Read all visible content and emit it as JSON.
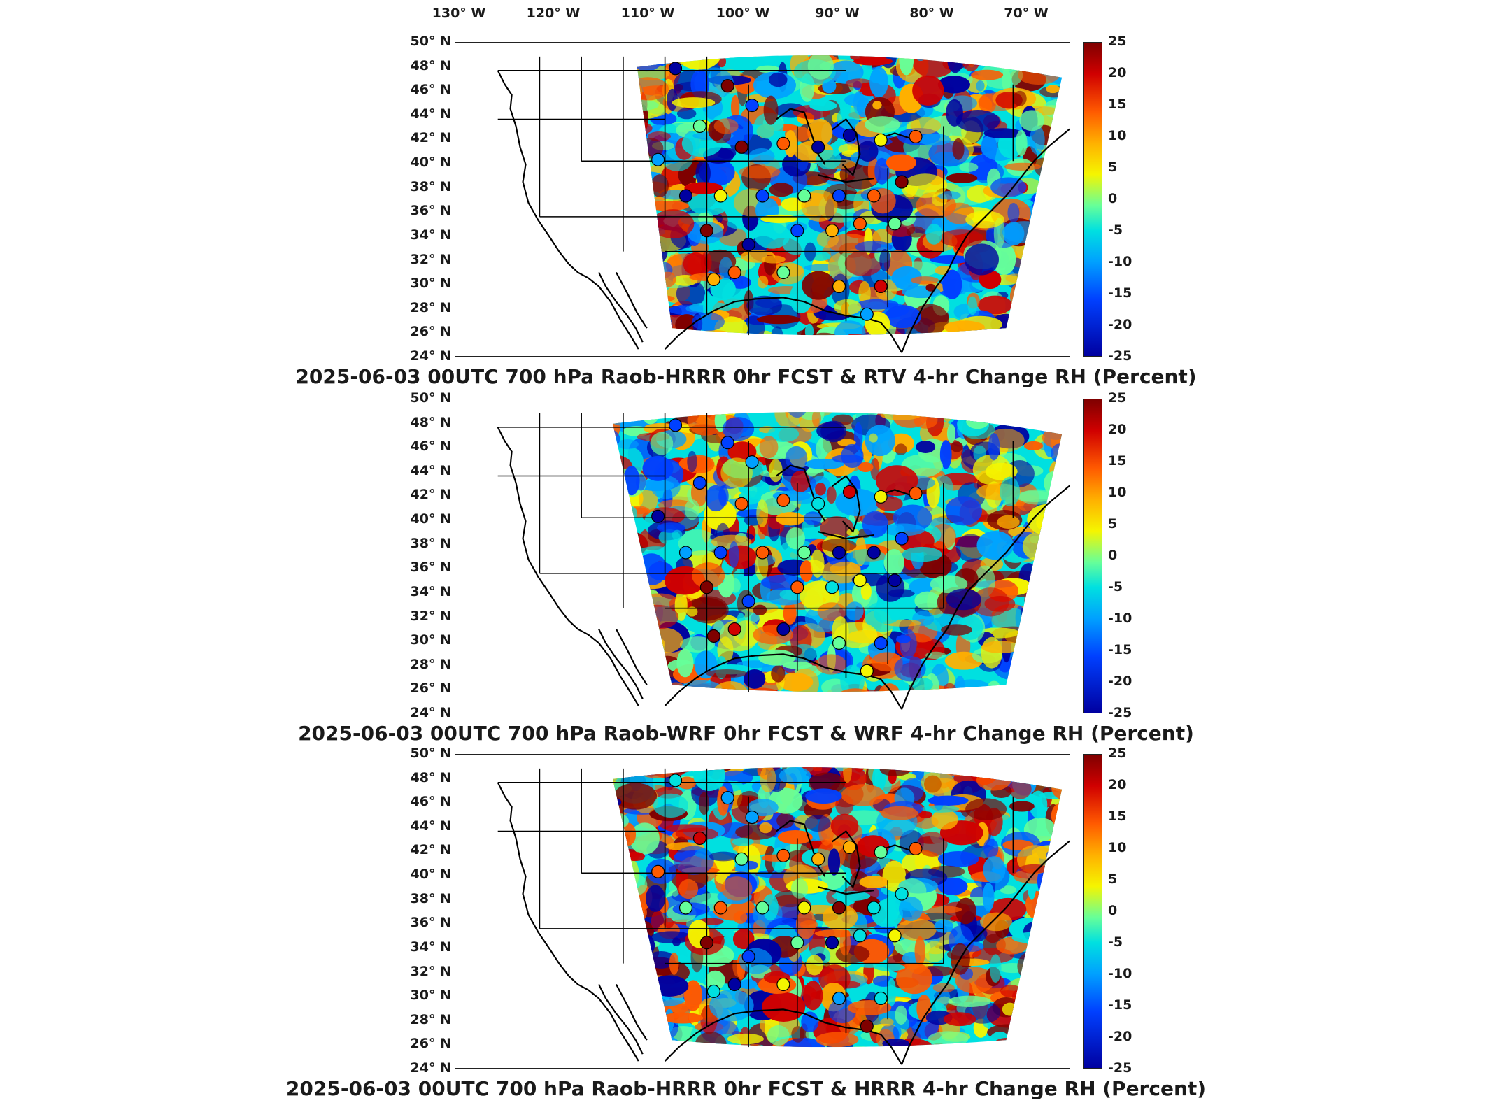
{
  "lon_labels": [
    "130° W",
    "120° W",
    "110° W",
    "100° W",
    "90° W",
    "80° W",
    "70° W"
  ],
  "lat_labels": [
    "50° N",
    "48° N",
    "46° N",
    "44° N",
    "42° N",
    "40° N",
    "38° N",
    "36° N",
    "34° N",
    "32° N",
    "30° N",
    "28° N",
    "26° N",
    "24° N"
  ],
  "colorbar_ticks": [
    "25",
    "20",
    "15",
    "10",
    "5",
    "0",
    "-5",
    "-10",
    "-15",
    "-20",
    "-25"
  ],
  "colorbar_colors": [
    "#7f0000",
    "#d00000",
    "#ff5a00",
    "#ffb000",
    "#f5f500",
    "#66ff99",
    "#00e0e0",
    "#00a0ff",
    "#0040ff",
    "#0000a0"
  ],
  "panels": [
    {
      "title": "2025-06-03 00UTC 700 hPa Raob-HRRR 0hr FCST & RTV 4-hr Change RH (Percent)"
    },
    {
      "title": "2025-06-03 00UTC 700 hPa Raob-WRF 0hr FCST & WRF 4-hr Change RH (Percent)"
    },
    {
      "title": "2025-06-03 00UTC 700 hPa Raob-HRRR 0hr FCST & HRRR 4-hr Change RH (Percent)"
    }
  ],
  "colorbar_range": [
    -25,
    25
  ]
}
